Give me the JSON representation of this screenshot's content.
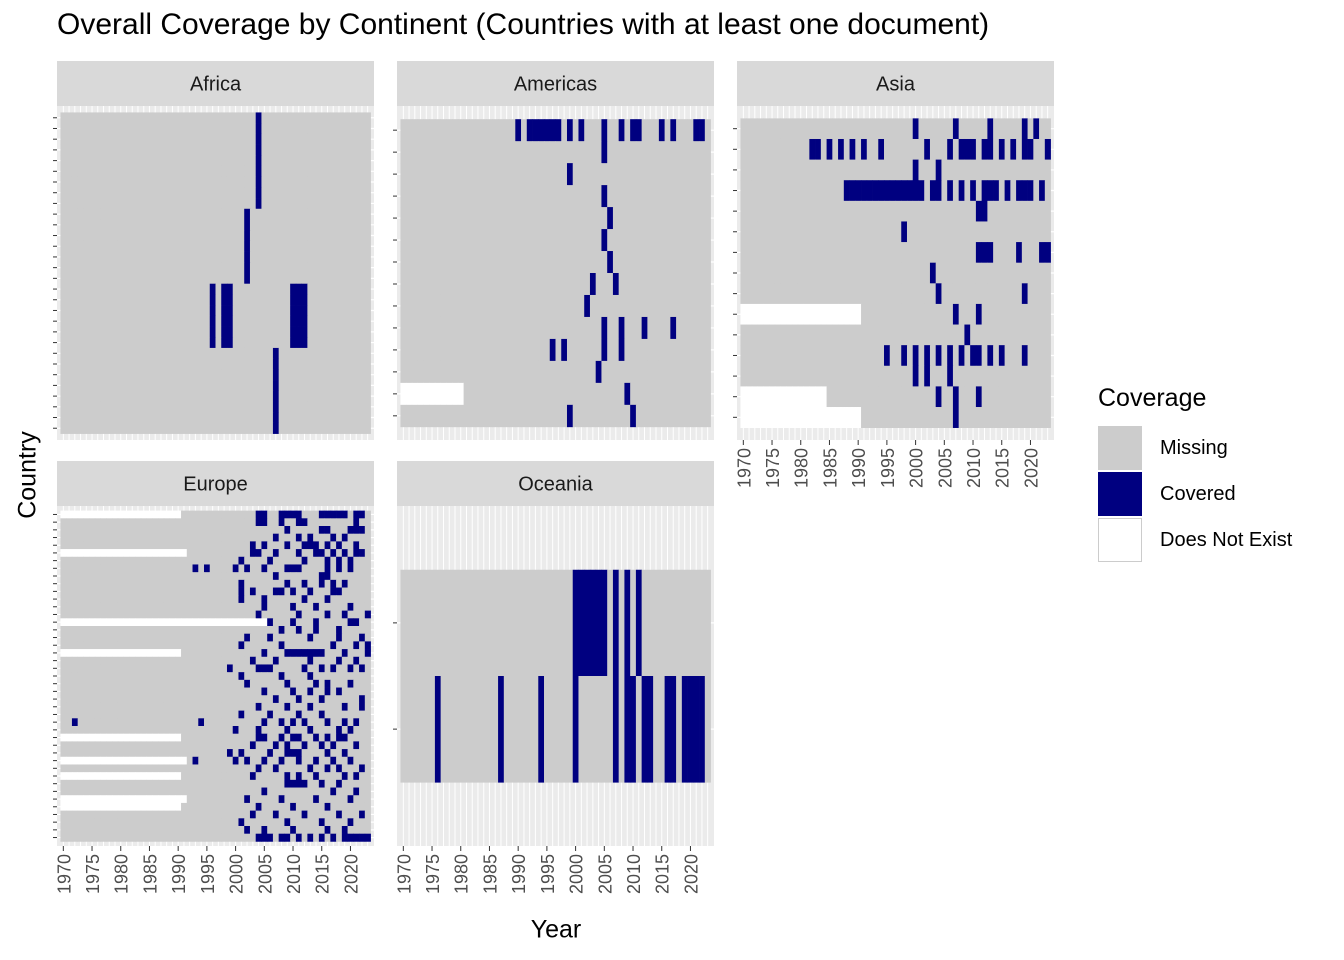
{
  "chart_data": {
    "type": "heatmap",
    "title": "Overall Coverage by Continent (Countries with at least one document)",
    "xlabel": "Year",
    "ylabel": "Country",
    "xlim": [
      1970,
      2023
    ],
    "x_ticks": [
      "1970",
      "1975",
      "1980",
      "1985",
      "1990",
      "1995",
      "2000",
      "2005",
      "2010",
      "2015",
      "2020"
    ],
    "y_tick_labels_shown": false,
    "legend": {
      "title": "Coverage",
      "position": "right",
      "entries": [
        {
          "label": "Missing",
          "color": "#cccccc"
        },
        {
          "label": "Covered",
          "color": "#000080"
        },
        {
          "label": "Does Not Exist",
          "color": "#ffffff"
        }
      ]
    },
    "facets": [
      {
        "name": "Africa",
        "rows": [
          {
            "covered": [
              2004
            ]
          },
          {
            "covered": [
              2004
            ]
          },
          {
            "covered": [
              2004
            ]
          },
          {
            "covered": [
              2004
            ]
          },
          {
            "covered": [
              2004
            ]
          },
          {
            "covered": [
              2004
            ]
          },
          {
            "covered": [
              2004
            ]
          },
          {
            "covered": [
              2004
            ]
          },
          {
            "covered": [
              2004
            ]
          },
          {
            "covered": [
              2002
            ]
          },
          {
            "covered": [
              2002
            ]
          },
          {
            "covered": [
              2002
            ]
          },
          {
            "covered": [
              2002
            ]
          },
          {
            "covered": [
              2002
            ]
          },
          {
            "covered": [
              2002
            ]
          },
          {
            "covered": [
              2002
            ]
          },
          {
            "covered": [
              1996,
              1998,
              1999,
              2010,
              2011,
              2012
            ]
          },
          {
            "covered": [
              1996,
              1998,
              1999,
              2010,
              2011,
              2012
            ]
          },
          {
            "covered": [
              1996,
              1998,
              1999,
              2010,
              2011,
              2012
            ]
          },
          {
            "covered": [
              1996,
              1998,
              1999,
              2010,
              2011,
              2012
            ]
          },
          {
            "covered": [
              1996,
              1998,
              1999,
              2010,
              2011,
              2012
            ]
          },
          {
            "covered": [
              1996,
              1998,
              1999,
              2010,
              2011,
              2012
            ]
          },
          {
            "covered": [
              2007
            ]
          },
          {
            "covered": [
              2007
            ]
          },
          {
            "covered": [
              2007
            ]
          },
          {
            "covered": [
              2007
            ]
          },
          {
            "covered": [
              2007
            ]
          },
          {
            "covered": [
              2007
            ]
          },
          {
            "covered": [
              2007
            ]
          },
          {
            "covered": [
              2007
            ]
          }
        ]
      },
      {
        "name": "Americas",
        "rows": [
          {
            "covered": [
              1990,
              1992,
              1993,
              1994,
              1995,
              1996,
              1997,
              1999,
              2001,
              2005,
              2008,
              2010,
              2011,
              2015,
              2017,
              2021,
              2022
            ]
          },
          {
            "covered": [
              2005
            ]
          },
          {
            "covered": [
              1999
            ]
          },
          {
            "covered": [
              2005
            ]
          },
          {
            "covered": [
              2006
            ]
          },
          {
            "covered": [
              2005
            ]
          },
          {
            "covered": [
              2006
            ]
          },
          {
            "covered": [
              2003,
              2007
            ]
          },
          {
            "covered": [
              2002
            ]
          },
          {
            "covered": [
              2005,
              2008,
              2012,
              2017
            ]
          },
          {
            "covered": [
              1996,
              1998,
              2005,
              2008
            ]
          },
          {
            "covered": [
              2004
            ]
          },
          {
            "covered": [
              2009
            ],
            "not_exist_until": 1980
          },
          {
            "covered": [
              1999,
              2010
            ]
          }
        ]
      },
      {
        "name": "Asia",
        "rows": [
          {
            "covered": [
              2000,
              2007,
              2013,
              2019,
              2021
            ]
          },
          {
            "covered": [
              1982,
              1983,
              1985,
              1987,
              1989,
              1991,
              1994,
              2002,
              2006,
              2008,
              2009,
              2010,
              2012,
              2013,
              2015,
              2017,
              2019,
              2020,
              2023
            ]
          },
          {
            "covered": [
              2000,
              2004
            ]
          },
          {
            "covered": [
              1988,
              1989,
              1990,
              1991,
              1992,
              1993,
              1994,
              1995,
              1996,
              1997,
              1998,
              1999,
              2000,
              2001,
              2003,
              2004,
              2006,
              2008,
              2010,
              2012,
              2013,
              2014,
              2016,
              2018,
              2019,
              2020,
              2022
            ]
          },
          {
            "covered": [
              2011,
              2012
            ]
          },
          {
            "covered": [
              1998
            ]
          },
          {
            "covered": [
              2011,
              2012,
              2013,
              2018,
              2022,
              2023
            ]
          },
          {
            "covered": [
              2003
            ]
          },
          {
            "covered": [
              2004,
              2019
            ]
          },
          {
            "covered": [
              2007,
              2011
            ],
            "not_exist_until": 1990
          },
          {
            "covered": [
              2009
            ]
          },
          {
            "covered": [
              1995,
              1998,
              2000,
              2002,
              2004,
              2006,
              2008,
              2010,
              2011,
              2013,
              2015,
              2019
            ]
          },
          {
            "covered": [
              2000,
              2002,
              2006
            ]
          },
          {
            "covered": [
              2004,
              2007,
              2011
            ],
            "not_exist_until": 1984
          },
          {
            "covered": [
              2007
            ],
            "not_exist_until": 1990
          }
        ]
      },
      {
        "name": "Europe",
        "rows": [
          {
            "covered": [
              2004,
              2005,
              2008,
              2009,
              2010,
              2011,
              2015,
              2016,
              2017,
              2018,
              2019,
              2021,
              2022
            ],
            "not_exist_until": 1990
          },
          {
            "covered": [
              2004,
              2005,
              2008,
              2011,
              2012,
              2021
            ]
          },
          {
            "covered": [
              2009,
              2015,
              2016,
              2020,
              2021,
              2022
            ]
          },
          {
            "covered": [
              2007,
              2011,
              2013,
              2017,
              2019
            ]
          },
          {
            "covered": [
              2003,
              2005,
              2009,
              2012,
              2013,
              2014,
              2016,
              2018,
              2021
            ]
          },
          {
            "covered": [
              2003,
              2004,
              2007,
              2011,
              2014,
              2015,
              2017,
              2019,
              2021,
              2022
            ],
            "not_exist_until": 1991
          },
          {
            "covered": [
              2001,
              2006,
              2012,
              2016,
              2018,
              2020
            ]
          },
          {
            "covered": [
              1993,
              1995,
              2000,
              2002,
              2005,
              2009,
              2010,
              2011,
              2016,
              2018,
              2020
            ]
          },
          {
            "covered": [
              2007,
              2015,
              2016
            ]
          },
          {
            "covered": [
              2001,
              2009,
              2012,
              2015,
              2017,
              2019
            ]
          },
          {
            "covered": [
              2001,
              2003,
              2007,
              2008,
              2010,
              2013,
              2017,
              2018
            ]
          },
          {
            "covered": [
              2001,
              2005,
              2012,
              2016
            ]
          },
          {
            "covered": [
              2005,
              2010,
              2014,
              2020
            ]
          },
          {
            "covered": [
              2004,
              2011,
              2016,
              2019,
              2023
            ]
          },
          {
            "covered": [
              2006,
              2010,
              2014,
              2020,
              2021
            ],
            "not_exist_until": 2005
          },
          {
            "covered": [
              2008,
              2011,
              2014,
              2018
            ]
          },
          {
            "covered": [
              2002,
              2006,
              2013,
              2018,
              2022
            ]
          },
          {
            "covered": [
              2001,
              2008,
              2017,
              2021,
              2023
            ]
          },
          {
            "covered": [
              2005,
              2009,
              2010,
              2011,
              2012,
              2013,
              2014,
              2015,
              2019,
              2023
            ],
            "not_exist_until": 1990
          },
          {
            "covered": [
              2003,
              2007,
              2013,
              2018,
              2021
            ]
          },
          {
            "covered": [
              1999,
              2004,
              2005,
              2006,
              2012,
              2015,
              2017,
              2020,
              2022
            ]
          },
          {
            "covered": [
              2001,
              2008,
              2013
            ]
          },
          {
            "covered": [
              2002,
              2009,
              2014,
              2016,
              2020
            ]
          },
          {
            "covered": [
              2005,
              2010,
              2013,
              2016,
              2018
            ]
          },
          {
            "covered": [
              2007,
              2011,
              2015,
              2022
            ]
          },
          {
            "covered": [
              2004,
              2009,
              2013,
              2019,
              2022
            ]
          },
          {
            "covered": [
              2001,
              2006,
              2011,
              2015
            ]
          },
          {
            "covered": [
              1972,
              1994,
              2005,
              2008,
              2010,
              2012,
              2016,
              2019,
              2021
            ]
          },
          {
            "covered": [
              2000,
              2004,
              2009,
              2013,
              2018,
              2020
            ]
          },
          {
            "covered": [
              2004,
              2005,
              2008,
              2010,
              2011,
              2014,
              2016,
              2018,
              2019
            ],
            "not_exist_until": 1990
          },
          {
            "covered": [
              2003,
              2007,
              2009,
              2012,
              2015,
              2017,
              2021
            ]
          },
          {
            "covered": [
              1999,
              2001,
              2006,
              2009,
              2010,
              2011,
              2016,
              2019
            ]
          },
          {
            "covered": [
              1993,
              2000,
              2002,
              2005,
              2008,
              2011,
              2014,
              2017,
              2020
            ],
            "not_exist_until": 1991
          },
          {
            "covered": [
              2004,
              2007,
              2013,
              2016,
              2018,
              2022
            ]
          },
          {
            "covered": [
              2003,
              2009,
              2011,
              2014,
              2019,
              2021
            ],
            "not_exist_until": 1990
          },
          {
            "covered": [
              2009,
              2010,
              2011,
              2012,
              2015,
              2018
            ]
          },
          {
            "covered": [
              2005,
              2017,
              2021
            ]
          },
          {
            "covered": [
              2002,
              2008,
              2014,
              2020
            ],
            "not_exist_until": 1991
          },
          {
            "covered": [
              2004,
              2010,
              2016
            ],
            "not_exist_until": 1990
          },
          {
            "covered": [
              2003,
              2007,
              2012,
              2018,
              2022
            ]
          },
          {
            "covered": [
              2001,
              2009,
              2015,
              2020
            ]
          },
          {
            "covered": [
              2002,
              2005,
              2010,
              2016,
              2019
            ]
          },
          {
            "covered": [
              2004,
              2005,
              2006,
              2008,
              2009,
              2011,
              2013,
              2015,
              2017,
              2019,
              2020,
              2021,
              2022,
              2023
            ]
          }
        ]
      },
      {
        "name": "Oceania",
        "rows": [
          {
            "covered": [
              2000,
              2001,
              2002,
              2003,
              2004,
              2005,
              2007,
              2009,
              2011
            ]
          },
          {
            "covered": [
              1976,
              1987,
              1994,
              2000,
              2007,
              2009,
              2010,
              2012,
              2013,
              2016,
              2017,
              2019,
              2020,
              2021,
              2022
            ]
          }
        ]
      }
    ]
  }
}
